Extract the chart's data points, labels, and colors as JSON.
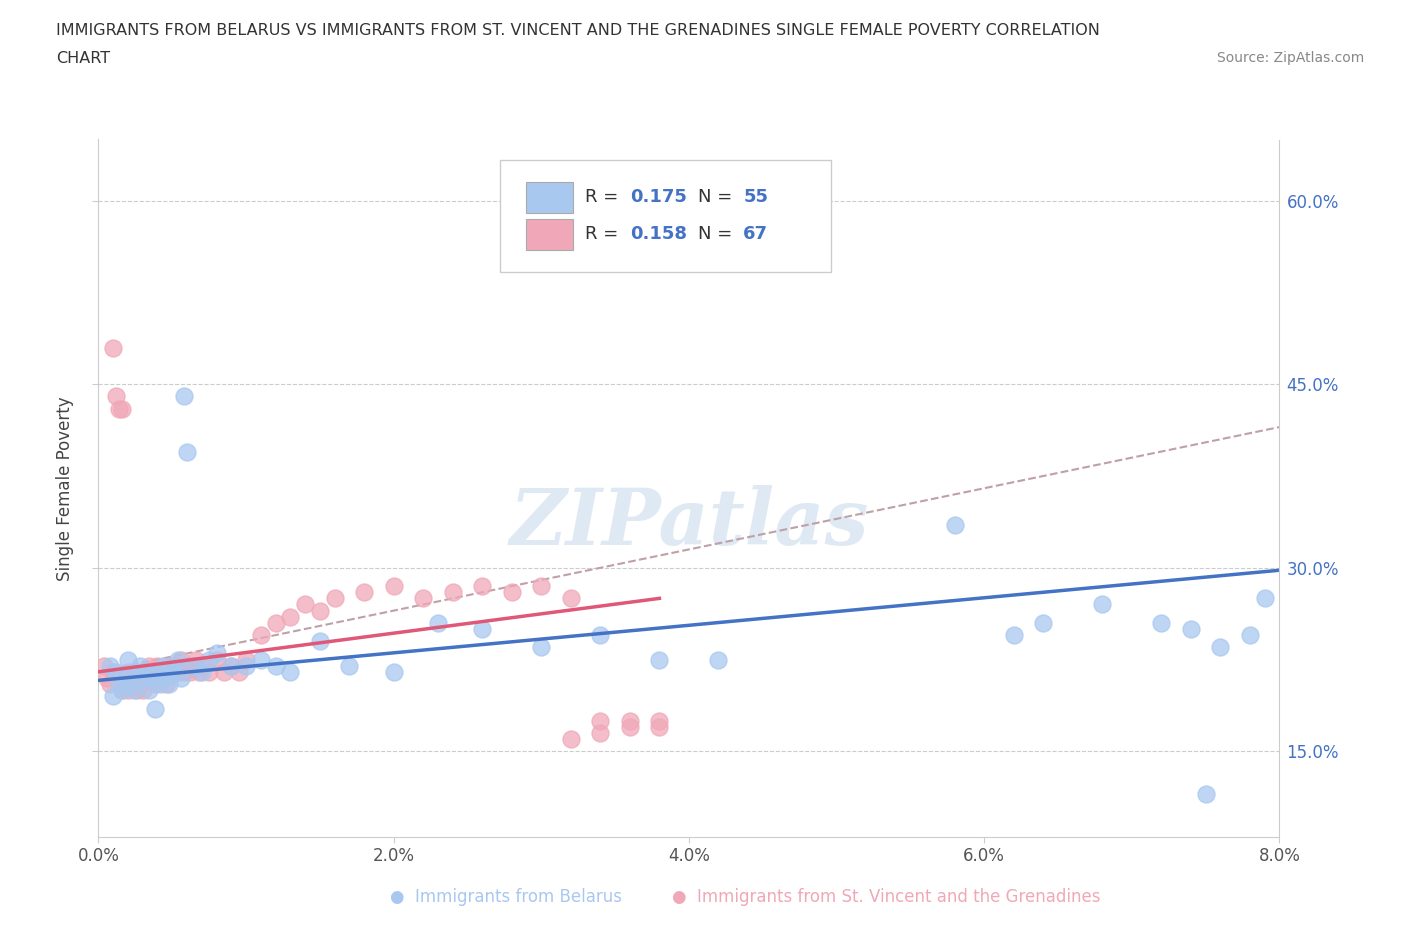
{
  "title_line1": "IMMIGRANTS FROM BELARUS VS IMMIGRANTS FROM ST. VINCENT AND THE GRENADINES SINGLE FEMALE POVERTY CORRELATION",
  "title_line2": "CHART",
  "source": "Source: ZipAtlas.com",
  "ylabel": "Single Female Poverty",
  "xlim": [
    0.0,
    0.08
  ],
  "ylim": [
    0.08,
    0.65
  ],
  "xticks": [
    0.0,
    0.02,
    0.04,
    0.06,
    0.08
  ],
  "xtick_labels": [
    "0.0%",
    "2.0%",
    "4.0%",
    "6.0%",
    "8.0%"
  ],
  "ytick_labels": [
    "15.0%",
    "30.0%",
    "45.0%",
    "60.0%"
  ],
  "yticks": [
    0.15,
    0.3,
    0.45,
    0.6
  ],
  "legend_R1": "0.175",
  "legend_N1": "55",
  "legend_R2": "0.158",
  "legend_N2": "67",
  "watermark": "ZIPatlas",
  "color_belarus": "#A8C8F0",
  "color_stvincent": "#F0A8B8",
  "color_line_belarus": "#4472C4",
  "color_line_stvincent": "#E05878",
  "color_dashed": "#C0A0A8",
  "legend_label1": "Immigrants from Belarus",
  "legend_label2": "Immigrants from St. Vincent and the Grenadines",
  "belarus_x": [
    0.0008,
    0.001,
    0.0012,
    0.0014,
    0.0016,
    0.0018,
    0.002,
    0.0022,
    0.0024,
    0.0026,
    0.0028,
    0.003,
    0.0032,
    0.0034,
    0.0036,
    0.0038,
    0.004,
    0.0042,
    0.0044,
    0.0046,
    0.0048,
    0.005,
    0.0052,
    0.0054,
    0.0056,
    0.0058,
    0.006,
    0.0065,
    0.007,
    0.0075,
    0.008,
    0.009,
    0.01,
    0.011,
    0.012,
    0.013,
    0.015,
    0.017,
    0.02,
    0.023,
    0.026,
    0.03,
    0.034,
    0.038,
    0.042,
    0.058,
    0.062,
    0.064,
    0.068,
    0.072,
    0.074,
    0.076,
    0.078,
    0.079,
    0.075
  ],
  "belarus_y": [
    0.22,
    0.195,
    0.215,
    0.205,
    0.2,
    0.21,
    0.225,
    0.205,
    0.2,
    0.215,
    0.22,
    0.21,
    0.215,
    0.2,
    0.21,
    0.185,
    0.215,
    0.205,
    0.22,
    0.21,
    0.205,
    0.22,
    0.215,
    0.225,
    0.21,
    0.44,
    0.395,
    0.22,
    0.215,
    0.225,
    0.23,
    0.22,
    0.22,
    0.225,
    0.22,
    0.215,
    0.24,
    0.22,
    0.215,
    0.255,
    0.25,
    0.235,
    0.245,
    0.225,
    0.225,
    0.335,
    0.245,
    0.255,
    0.27,
    0.255,
    0.25,
    0.235,
    0.245,
    0.275,
    0.115
  ],
  "stvincent_x": [
    0.0004,
    0.0006,
    0.0008,
    0.001,
    0.001,
    0.0012,
    0.0014,
    0.0016,
    0.0016,
    0.0018,
    0.002,
    0.002,
    0.0022,
    0.0024,
    0.0026,
    0.0026,
    0.0028,
    0.003,
    0.003,
    0.0032,
    0.0034,
    0.0036,
    0.0038,
    0.0038,
    0.004,
    0.0042,
    0.0044,
    0.0046,
    0.0048,
    0.005,
    0.0052,
    0.0054,
    0.0056,
    0.0058,
    0.006,
    0.0062,
    0.0064,
    0.0066,
    0.0068,
    0.007,
    0.0075,
    0.008,
    0.0085,
    0.009,
    0.0095,
    0.01,
    0.011,
    0.012,
    0.013,
    0.014,
    0.015,
    0.016,
    0.018,
    0.02,
    0.022,
    0.024,
    0.026,
    0.028,
    0.03,
    0.032,
    0.034,
    0.036,
    0.038,
    0.038,
    0.036,
    0.034,
    0.032
  ],
  "stvincent_y": [
    0.22,
    0.21,
    0.205,
    0.48,
    0.215,
    0.44,
    0.43,
    0.2,
    0.43,
    0.21,
    0.215,
    0.2,
    0.205,
    0.215,
    0.21,
    0.2,
    0.205,
    0.215,
    0.2,
    0.215,
    0.22,
    0.21,
    0.205,
    0.215,
    0.22,
    0.21,
    0.215,
    0.205,
    0.22,
    0.215,
    0.22,
    0.215,
    0.225,
    0.215,
    0.22,
    0.215,
    0.22,
    0.225,
    0.215,
    0.22,
    0.215,
    0.225,
    0.215,
    0.22,
    0.215,
    0.225,
    0.245,
    0.255,
    0.26,
    0.27,
    0.265,
    0.275,
    0.28,
    0.285,
    0.275,
    0.28,
    0.285,
    0.28,
    0.285,
    0.275,
    0.175,
    0.175,
    0.175,
    0.17,
    0.17,
    0.165,
    0.16
  ],
  "trendline_blue_x0": 0.0,
  "trendline_blue_y0": 0.208,
  "trendline_blue_x1": 0.08,
  "trendline_blue_y1": 0.298,
  "trendline_pink_x0": 0.0,
  "trendline_pink_y0": 0.215,
  "trendline_pink_x1": 0.038,
  "trendline_pink_y1": 0.275,
  "trendline_dash_x0": 0.0,
  "trendline_dash_y0": 0.215,
  "trendline_dash_x1": 0.08,
  "trendline_dash_y1": 0.415
}
